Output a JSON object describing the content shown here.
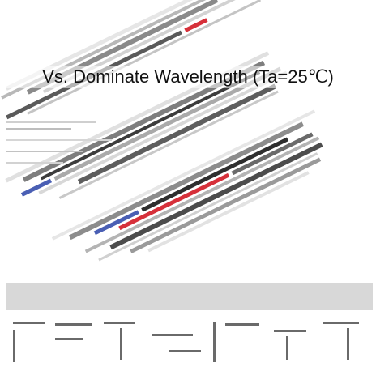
{
  "caption": "Vs. Dominate Wavelength (Ta=25℃)",
  "colors": {
    "background": "#ffffff",
    "streak_light": "#e4e4e4",
    "streak_mid": "#9a9a9a",
    "streak_dark": "#3c3c3c",
    "accent_red": "#d6303a",
    "accent_blue": "#4a5fb4",
    "band": "#d8d8d8"
  }
}
